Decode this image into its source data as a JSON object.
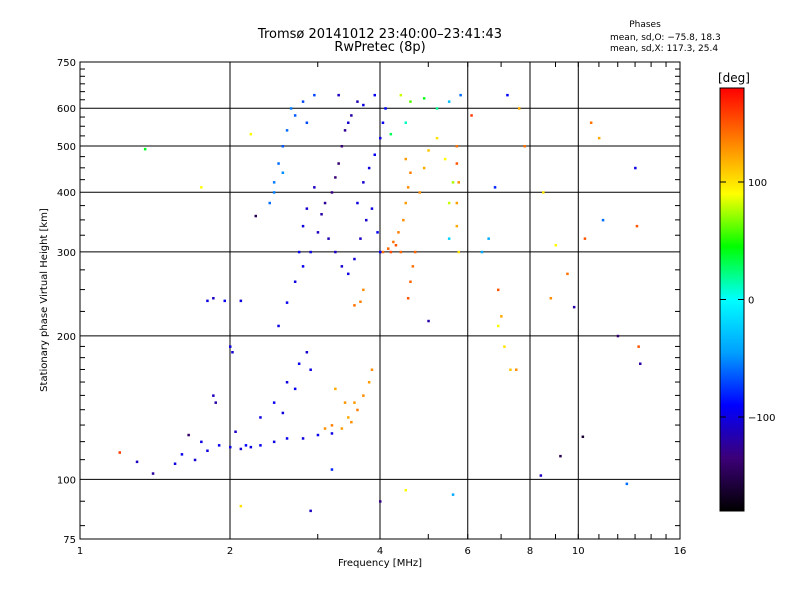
{
  "chart_data": {
    "type": "scatter",
    "title": "Tromsø 20141012 23:40:00–23:41:43",
    "subtitle": "RwPretec (8p)",
    "xlabel": "Frequency [MHz]",
    "ylabel": "Stationary phase Virtual Height [km]",
    "x_scale": "log2",
    "y_scale": "log",
    "xlim": [
      1,
      16
    ],
    "ylim": [
      75,
      750
    ],
    "x_ticks": [
      1,
      2,
      4,
      6,
      8,
      10,
      16
    ],
    "x_tick_labels": [
      "1",
      "2",
      "4",
      "6",
      "8",
      "10",
      "16"
    ],
    "y_ticks": [
      75,
      100,
      200,
      300,
      400,
      500,
      600,
      750
    ],
    "y_tick_labels": [
      "75",
      "100",
      "200",
      "300",
      "400",
      "500",
      "600",
      "750"
    ],
    "grid": true,
    "colorbar": {
      "label": "[deg]",
      "range": [
        -180,
        180
      ],
      "ticks": [
        100,
        0,
        -100
      ],
      "tick_labels": [
        "100",
        "0",
        "−100"
      ],
      "colors": [
        "#000000",
        "#3c0078",
        "#0000ff",
        "#00a0ff",
        "#00ffff",
        "#00ff00",
        "#ffff00",
        "#ff8000",
        "#ff0000"
      ]
    },
    "stats": {
      "title": "Phases",
      "line1": "mean, sd,O: −75.8, 18.3",
      "line2": "mean, sd,X: 117.3, 25.4"
    },
    "series": [
      {
        "points": [
          [
            1.3,
            109,
            -110
          ],
          [
            1.4,
            103,
            -120
          ],
          [
            1.55,
            108,
            -100
          ],
          [
            1.6,
            113,
            -95
          ],
          [
            1.7,
            110,
            -105
          ],
          [
            1.8,
            115,
            -100
          ],
          [
            1.9,
            118,
            -95
          ],
          [
            2.0,
            117,
            -100
          ],
          [
            2.1,
            116,
            -105
          ],
          [
            2.2,
            117,
            -100
          ],
          [
            2.3,
            118,
            -95
          ],
          [
            2.45,
            120,
            -100
          ],
          [
            2.6,
            122,
            -95
          ],
          [
            2.8,
            122,
            -100
          ],
          [
            3.0,
            124,
            -95
          ],
          [
            3.2,
            125,
            -100
          ],
          [
            1.65,
            124,
            -140
          ],
          [
            1.75,
            120,
            -100
          ],
          [
            2.05,
            126,
            -110
          ],
          [
            2.15,
            118,
            -90
          ],
          [
            1.85,
            150,
            -110
          ],
          [
            1.87,
            145,
            -120
          ],
          [
            2.0,
            190,
            -100
          ],
          [
            2.02,
            185,
            -105
          ],
          [
            1.8,
            237,
            -100
          ],
          [
            1.85,
            240,
            -110
          ],
          [
            1.95,
            237,
            -95
          ],
          [
            2.1,
            237,
            -100
          ],
          [
            2.3,
            135,
            -100
          ],
          [
            2.45,
            145,
            -95
          ],
          [
            2.6,
            160,
            -100
          ],
          [
            2.75,
            175,
            -95
          ],
          [
            2.85,
            185,
            -105
          ],
          [
            2.9,
            170,
            -100
          ],
          [
            2.7,
            155,
            -95
          ],
          [
            2.55,
            138,
            -100
          ],
          [
            2.5,
            210,
            -100
          ],
          [
            2.6,
            235,
            -95
          ],
          [
            2.7,
            260,
            -100
          ],
          [
            2.8,
            280,
            -95
          ],
          [
            2.9,
            300,
            -100
          ],
          [
            3.0,
            330,
            -110
          ],
          [
            3.05,
            360,
            -120
          ],
          [
            3.1,
            380,
            -125
          ],
          [
            3.2,
            400,
            -130
          ],
          [
            3.25,
            430,
            -135
          ],
          [
            3.3,
            460,
            -140
          ],
          [
            3.35,
            500,
            -135
          ],
          [
            3.4,
            540,
            -125
          ],
          [
            3.5,
            580,
            -120
          ],
          [
            3.6,
            620,
            -115
          ],
          [
            3.3,
            640,
            -110
          ],
          [
            2.75,
            300,
            -95
          ],
          [
            2.8,
            340,
            -100
          ],
          [
            2.85,
            370,
            -105
          ],
          [
            2.95,
            410,
            -110
          ],
          [
            3.15,
            320,
            -115
          ],
          [
            3.25,
            300,
            -110
          ],
          [
            3.35,
            280,
            -105
          ],
          [
            3.45,
            270,
            -100
          ],
          [
            3.55,
            290,
            -105
          ],
          [
            3.65,
            320,
            -110
          ],
          [
            3.75,
            350,
            -105
          ],
          [
            3.85,
            370,
            -100
          ],
          [
            3.95,
            330,
            -95
          ],
          [
            4.0,
            300,
            -90
          ],
          [
            3.6,
            380,
            -100
          ],
          [
            3.7,
            420,
            -105
          ],
          [
            3.8,
            450,
            -100
          ],
          [
            3.9,
            480,
            -95
          ],
          [
            4.0,
            520,
            -100
          ],
          [
            4.05,
            560,
            -95
          ],
          [
            4.1,
            600,
            -90
          ],
          [
            3.9,
            640,
            -95
          ],
          [
            3.7,
            610,
            -100
          ],
          [
            3.45,
            560,
            -105
          ],
          [
            2.4,
            380,
            -60
          ],
          [
            2.45,
            420,
            -55
          ],
          [
            2.5,
            460,
            -60
          ],
          [
            2.55,
            500,
            -65
          ],
          [
            2.6,
            540,
            -60
          ],
          [
            2.7,
            580,
            -65
          ],
          [
            2.8,
            620,
            -70
          ],
          [
            2.65,
            600,
            -55
          ],
          [
            2.55,
            440,
            -50
          ],
          [
            2.45,
            400,
            -55
          ],
          [
            2.95,
            640,
            -70
          ],
          [
            2.85,
            560,
            -70
          ],
          [
            3.1,
            128,
            130
          ],
          [
            3.2,
            130,
            135
          ],
          [
            3.35,
            128,
            125
          ],
          [
            3.5,
            132,
            130
          ],
          [
            3.6,
            140,
            135
          ],
          [
            3.7,
            150,
            130
          ],
          [
            3.8,
            160,
            125
          ],
          [
            3.85,
            170,
            130
          ],
          [
            3.45,
            135,
            120
          ],
          [
            3.55,
            145,
            125
          ],
          [
            3.25,
            155,
            120
          ],
          [
            3.4,
            145,
            128
          ],
          [
            3.55,
            232,
            140
          ],
          [
            3.65,
            236,
            135
          ],
          [
            3.7,
            250,
            130
          ],
          [
            4.05,
            300,
            140
          ],
          [
            4.15,
            305,
            145
          ],
          [
            4.25,
            315,
            140
          ],
          [
            4.35,
            330,
            135
          ],
          [
            4.45,
            350,
            130
          ],
          [
            4.5,
            380,
            125
          ],
          [
            4.55,
            410,
            130
          ],
          [
            4.6,
            440,
            135
          ],
          [
            4.4,
            300,
            145
          ],
          [
            4.3,
            310,
            150
          ],
          [
            4.2,
            300,
            155
          ],
          [
            4.5,
            470,
            125
          ],
          [
            4.55,
            240,
            150
          ],
          [
            4.6,
            260,
            145
          ],
          [
            4.65,
            280,
            140
          ],
          [
            4.7,
            300,
            145
          ],
          [
            4.8,
            400,
            130
          ],
          [
            4.9,
            450,
            120
          ],
          [
            5.0,
            490,
            110
          ],
          [
            5.2,
            520,
            100
          ],
          [
            5.4,
            470,
            90
          ],
          [
            5.5,
            380,
            80
          ],
          [
            5.6,
            420,
            75
          ],
          [
            5.7,
            500,
            140
          ],
          [
            5.7,
            460,
            150
          ],
          [
            5.75,
            420,
            130
          ],
          [
            5.7,
            380,
            125
          ],
          [
            5.7,
            340,
            120
          ],
          [
            5.75,
            300,
            100
          ],
          [
            4.4,
            640,
            80
          ],
          [
            4.6,
            620,
            60
          ],
          [
            4.9,
            630,
            40
          ],
          [
            5.2,
            600,
            20
          ],
          [
            5.5,
            620,
            -30
          ],
          [
            5.8,
            640,
            -60
          ],
          [
            4.2,
            530,
            30
          ],
          [
            4.5,
            560,
            10
          ],
          [
            6.4,
            300,
            -40
          ],
          [
            6.9,
            250,
            150
          ],
          [
            7.0,
            220,
            120
          ],
          [
            7.1,
            190,
            100
          ],
          [
            6.9,
            210,
            90
          ],
          [
            7.3,
            170,
            110
          ],
          [
            7.5,
            170,
            130
          ],
          [
            7.6,
            600,
            120
          ],
          [
            7.8,
            500,
            140
          ],
          [
            8.5,
            400,
            100
          ],
          [
            9.0,
            310,
            90
          ],
          [
            9.5,
            270,
            140
          ],
          [
            8.8,
            240,
            130
          ],
          [
            9.8,
            230,
            -120
          ],
          [
            10.3,
            320,
            150
          ],
          [
            10.6,
            560,
            140
          ],
          [
            11.0,
            520,
            120
          ],
          [
            11.2,
            350,
            -60
          ],
          [
            12.0,
            200,
            -140
          ],
          [
            13.0,
            450,
            -100
          ],
          [
            13.1,
            340,
            150
          ],
          [
            13.2,
            190,
            150
          ],
          [
            13.3,
            175,
            -120
          ],
          [
            12.5,
            98,
            -60
          ],
          [
            10.2,
            123,
            -160
          ],
          [
            9.2,
            112,
            -150
          ],
          [
            8.4,
            102,
            -110
          ],
          [
            6.6,
            320,
            -40
          ],
          [
            1.2,
            114,
            160
          ],
          [
            1.35,
            493,
            40
          ],
          [
            1.75,
            410,
            90
          ],
          [
            2.2,
            530,
            90
          ],
          [
            2.25,
            357,
            -150
          ],
          [
            2.1,
            88,
            100
          ],
          [
            2.9,
            86,
            -110
          ],
          [
            4.5,
            95,
            90
          ],
          [
            5.6,
            93,
            -40
          ],
          [
            4.0,
            90,
            -130
          ],
          [
            3.2,
            105,
            -80
          ],
          [
            5.0,
            215,
            -120
          ],
          [
            5.5,
            320,
            -20
          ],
          [
            7.2,
            640,
            -90
          ],
          [
            6.1,
            580,
            160
          ],
          [
            6.8,
            410,
            -80
          ]
        ]
      }
    ]
  }
}
